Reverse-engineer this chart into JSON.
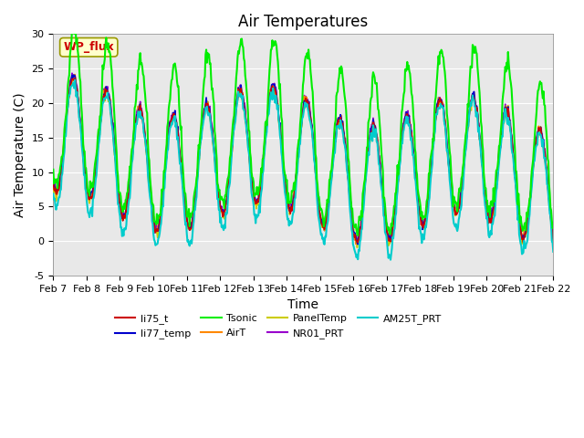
{
  "title": "Air Temperatures",
  "xlabel": "Time",
  "ylabel": "Air Temperature (C)",
  "ylim": [
    -5,
    30
  ],
  "xtick_labels": [
    "Feb 7",
    "Feb 8",
    "Feb 9",
    "Feb 10",
    "Feb 11",
    "Feb 12",
    "Feb 13",
    "Feb 14",
    "Feb 15",
    "Feb 16",
    "Feb 17",
    "Feb 18",
    "Feb 19",
    "Feb 20",
    "Feb 21",
    "Feb 22"
  ],
  "xtick_positions": [
    0,
    1,
    2,
    3,
    4,
    5,
    6,
    7,
    8,
    9,
    10,
    11,
    12,
    13,
    14,
    15
  ],
  "legend_label": "WP_flux",
  "legend_label_color": "#cc0000",
  "legend_box_color": "#ffffcc",
  "legend_box_edge": "#999900",
  "series": {
    "li75_t": {
      "color": "#cc0000",
      "lw": 1.2
    },
    "li77_temp": {
      "color": "#0000cc",
      "lw": 1.2
    },
    "Tsonic": {
      "color": "#00ee00",
      "lw": 1.5
    },
    "AirT": {
      "color": "#ff8800",
      "lw": 1.2
    },
    "PanelTemp": {
      "color": "#cccc00",
      "lw": 1.2
    },
    "NR01_PRT": {
      "color": "#9900cc",
      "lw": 1.2
    },
    "AM25T_PRT": {
      "color": "#00cccc",
      "lw": 1.5
    }
  },
  "bg_color": "#e8e8e8",
  "title_fontsize": 12,
  "axis_label_fontsize": 10,
  "tick_fontsize": 8
}
